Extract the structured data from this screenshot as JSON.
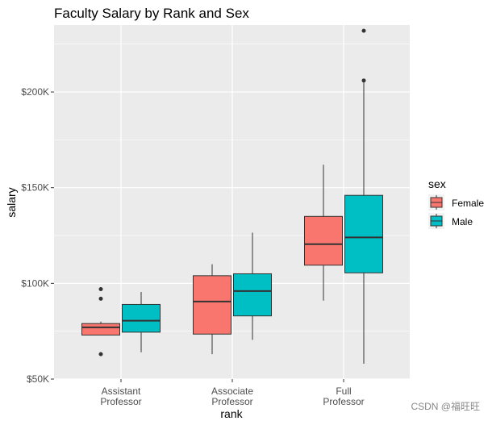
{
  "chart_data": {
    "type": "boxplot",
    "title": "Faculty Salary by Rank and Sex",
    "xlabel": "rank",
    "ylabel": "salary",
    "ylim": [
      50000,
      235000
    ],
    "yticks": [
      {
        "value": 50000,
        "label": "$50K"
      },
      {
        "value": 100000,
        "label": "$100K"
      },
      {
        "value": 150000,
        "label": "$150K"
      },
      {
        "value": 200000,
        "label": "$200K"
      }
    ],
    "categories": [
      {
        "key": "assistant",
        "lines": [
          "Assistant",
          "Professor"
        ]
      },
      {
        "key": "associate",
        "lines": [
          "Associate",
          "Professor"
        ]
      },
      {
        "key": "full",
        "lines": [
          "Full",
          "Professor"
        ]
      }
    ],
    "legend": {
      "title": "sex",
      "entries": [
        {
          "name": "Female",
          "color": "#F8766D"
        },
        {
          "name": "Male",
          "color": "#00BFC4"
        }
      ]
    },
    "series": [
      {
        "name": "Female",
        "color": "#F8766D",
        "boxes": [
          {
            "category": "assistant",
            "whisker_low": 73000,
            "q1": 73000,
            "median": 77000,
            "q3": 79000,
            "whisker_high": 80000,
            "outliers": [
              97000,
              92000,
              63000
            ]
          },
          {
            "category": "associate",
            "whisker_low": 63000,
            "q1": 73500,
            "median": 90500,
            "q3": 104000,
            "whisker_high": 110000,
            "outliers": []
          },
          {
            "category": "full",
            "whisker_low": 91000,
            "q1": 109500,
            "median": 120500,
            "q3": 135000,
            "whisker_high": 162000,
            "outliers": []
          }
        ]
      },
      {
        "name": "Male",
        "color": "#00BFC4",
        "boxes": [
          {
            "category": "assistant",
            "whisker_low": 64000,
            "q1": 74500,
            "median": 80500,
            "q3": 89000,
            "whisker_high": 95500,
            "outliers": []
          },
          {
            "category": "associate",
            "whisker_low": 70500,
            "q1": 83000,
            "median": 96000,
            "q3": 105000,
            "whisker_high": 126500,
            "outliers": []
          },
          {
            "category": "full",
            "whisker_low": 58000,
            "q1": 105500,
            "median": 124000,
            "q3": 146000,
            "whisker_high": 205000,
            "outliers": [
              206000,
              232000
            ]
          }
        ]
      }
    ]
  },
  "watermark": "CSDN @福旺旺"
}
